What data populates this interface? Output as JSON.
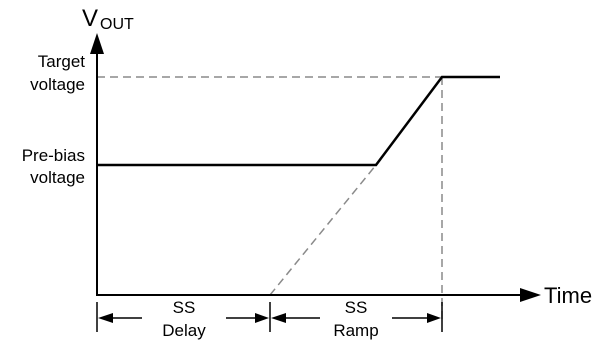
{
  "y_axis": {
    "label_main": "V",
    "label_sub": "OUT"
  },
  "x_axis": {
    "label": "Time"
  },
  "levels": {
    "target_line1": "Target",
    "target_line2": "voltage",
    "prebias_line1": "Pre-bias",
    "prebias_line2": "voltage"
  },
  "intervals": {
    "delay_line1": "SS",
    "delay_line2": "Delay",
    "ramp_line1": "SS",
    "ramp_line2": "Ramp"
  },
  "colors": {
    "stroke": "#000000",
    "dashed": "#8a8a8a"
  }
}
